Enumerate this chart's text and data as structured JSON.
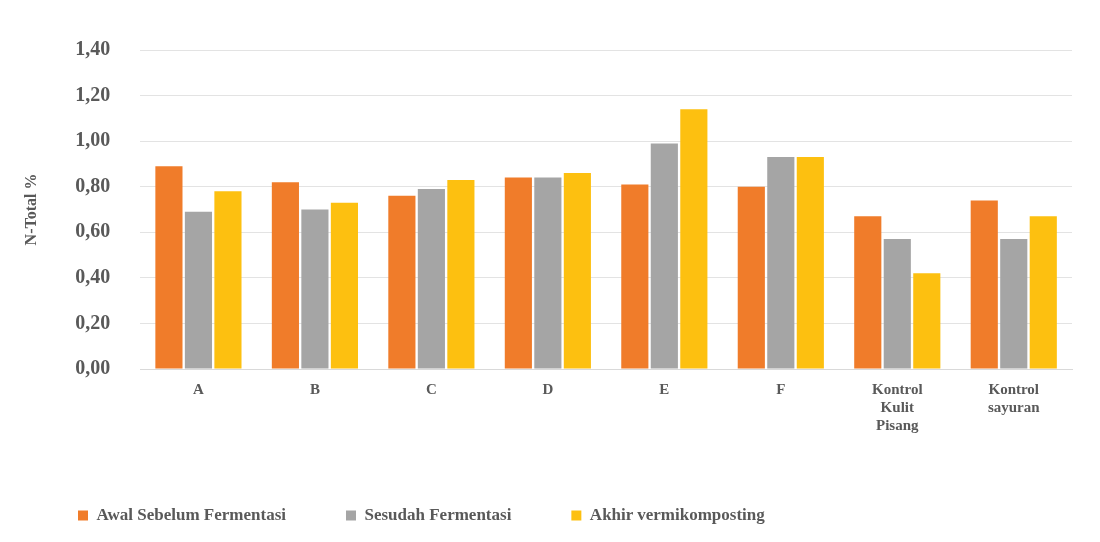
{
  "chart_data": {
    "type": "bar",
    "ylabel": "N-Total %",
    "categories": [
      "A",
      "B",
      "C",
      "D",
      "E",
      "F",
      "Kontrol Kulit Pisang",
      "Kontrol sayuran"
    ],
    "series": [
      {
        "name": "Awal Sebelum Fermentasi",
        "color": "#f07c2a",
        "values": [
          0.89,
          0.82,
          0.76,
          0.84,
          0.81,
          0.8,
          0.67,
          0.74
        ]
      },
      {
        "name": "Sesudah Fermentasi",
        "color": "#a5a5a5",
        "values": [
          0.69,
          0.7,
          0.79,
          0.84,
          0.99,
          0.93,
          0.57,
          0.57
        ]
      },
      {
        "name": "Akhir vermikomposting",
        "color": "#fdc010",
        "values": [
          0.78,
          0.73,
          0.83,
          0.86,
          1.14,
          0.93,
          0.42,
          0.67
        ]
      }
    ],
    "ylim": [
      0,
      1.4
    ],
    "yticks": [
      {
        "value": 0,
        "label": "0,00"
      },
      {
        "value": 0.2,
        "label": "0,20"
      },
      {
        "value": 0.4,
        "label": "0,40"
      },
      {
        "value": 0.6,
        "label": "0,60"
      },
      {
        "value": 0.8,
        "label": "0,80"
      },
      {
        "value": 1,
        "label": "1,00"
      },
      {
        "value": 1.2,
        "label": "1,20"
      },
      {
        "value": 1.4,
        "label": "1,40"
      }
    ],
    "grid": "y",
    "legend": "bottom"
  }
}
